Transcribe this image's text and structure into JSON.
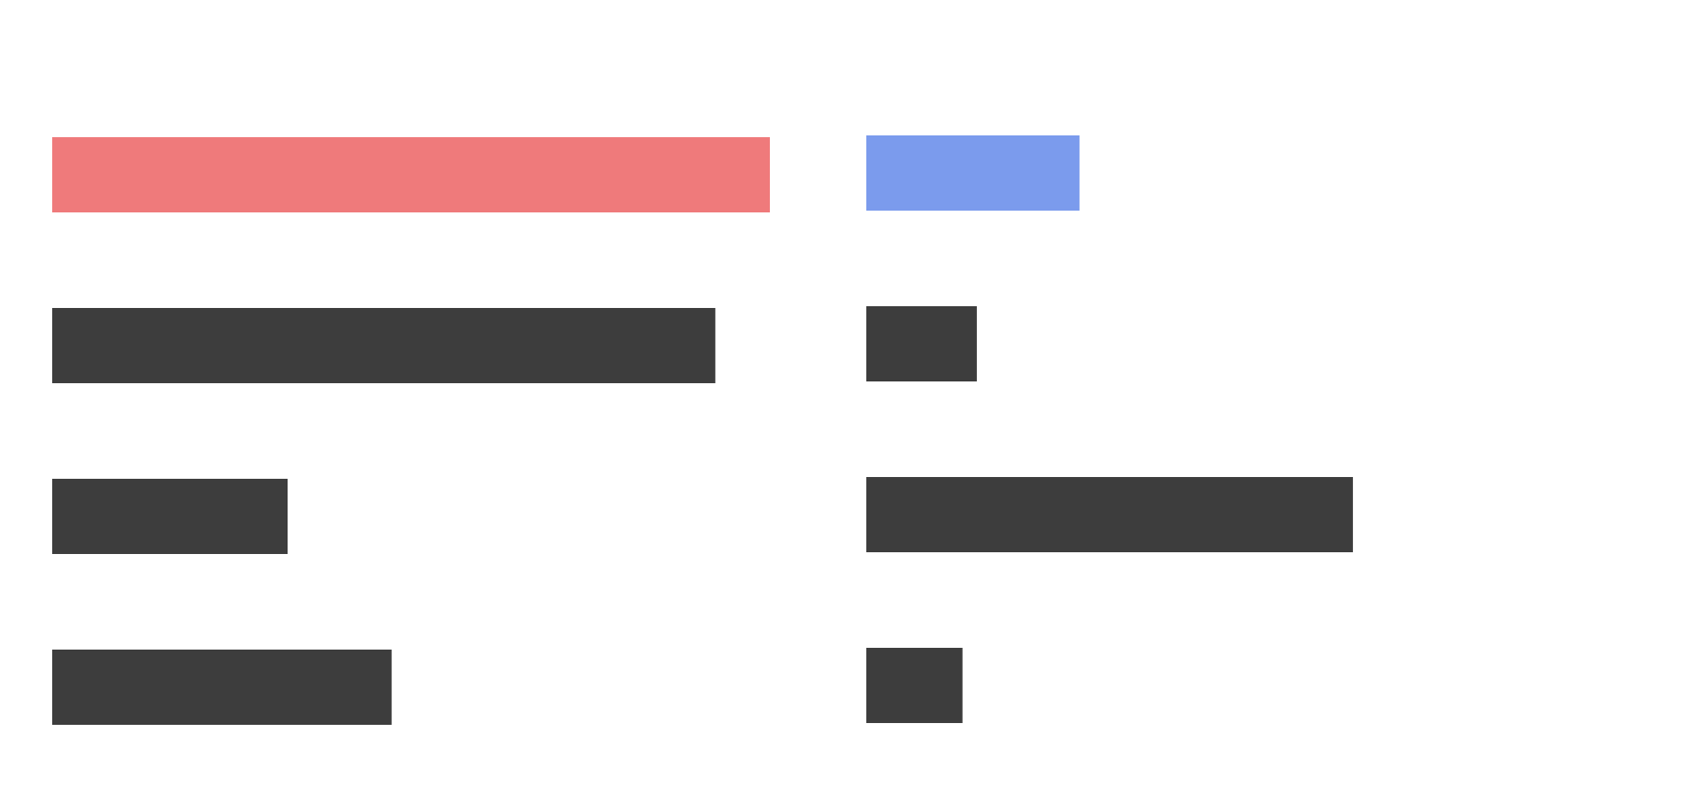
{
  "chart_data": [
    {
      "type": "bar",
      "orientation": "horizontal",
      "title": "",
      "xlabel": "",
      "ylabel": "",
      "axes_visible": false,
      "grid": false,
      "legend": "none",
      "xlim": [
        0,
        100
      ],
      "categories": [
        "",
        "",
        "",
        ""
      ],
      "values": [
        100,
        92.4,
        32.8,
        47.3
      ],
      "colors": [
        "#ef7a7b",
        "#3d3d3d",
        "#3d3d3d",
        "#3d3d3d"
      ]
    },
    {
      "type": "bar",
      "orientation": "horizontal",
      "title": "",
      "xlabel": "",
      "ylabel": "",
      "axes_visible": false,
      "grid": false,
      "legend": "none",
      "xlim": [
        0,
        100
      ],
      "categories": [
        "",
        "",
        "",
        ""
      ],
      "values": [
        29.7,
        15.4,
        67.8,
        13.4
      ],
      "colors": [
        "#7b9bed",
        "#3d3d3d",
        "#3d3d3d",
        "#3d3d3d"
      ]
    }
  ]
}
